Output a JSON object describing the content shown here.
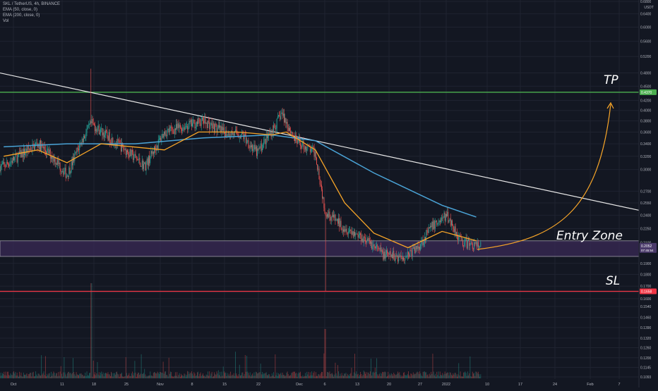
{
  "legend": {
    "symbol": "SKL / TetherUS, 4h, BINANCE",
    "ema50": "EMA (50, close, 0)",
    "ema200": "EMA (200, close, 0)",
    "vol": "Vol"
  },
  "price_unit": "USDT",
  "annotations": {
    "tp": "TP",
    "entry": "Entry Zone",
    "sl": "SL"
  },
  "colors": {
    "background": "#131722",
    "candle_up": "#26a69a",
    "candle_down": "#ef5350",
    "ema50": "#f7a528",
    "ema200": "#4aa3d6",
    "tp_line": "#4caf50",
    "sl_line": "#f23645",
    "entry_zone_fill": "#3a2a55",
    "trendline": "#e8e8e8",
    "projection_arrow": "#f7a528"
  },
  "chart_data": {
    "type": "candlestick",
    "title": "SKL / TetherUS, 4h, BINANCE",
    "y_axis": {
      "scale": "log",
      "unit": "USDT",
      "range": [
        0.1093,
        0.68
      ],
      "ticks": [
        "0.6800",
        "0.6400",
        "0.6000",
        "0.5600",
        "0.5200",
        "0.4800",
        "0.4500",
        "0.4200",
        "0.4000",
        "0.3800",
        "0.3600",
        "0.3400",
        "0.3200",
        "0.3000",
        "0.2700",
        "0.2550",
        "0.2400",
        "0.2250",
        "0.2100",
        "0.1900",
        "0.1800",
        "0.1700",
        "0.1650",
        "0.1600",
        "0.1540",
        "0.1460",
        "0.1390",
        "0.1320",
        "0.1260",
        "0.1200",
        "0.1145",
        "0.1093"
      ]
    },
    "x_axis": {
      "ticks": [
        "Oct",
        "11",
        "18",
        "25",
        "Nov",
        "8",
        "15",
        "22",
        "Dec",
        "6",
        "13",
        "20",
        "27",
        "2022",
        "10",
        "17",
        "24",
        "Feb",
        "7"
      ]
    },
    "horizontal_levels": [
      {
        "name": "TP",
        "value": 0.437,
        "label": "0.4370"
      },
      {
        "name": "SL",
        "value": 0.1658,
        "label": "0.1658"
      }
    ],
    "entry_zone": {
      "low": 0.1965,
      "high": 0.212,
      "labels": [
        "0.2052",
        "07:45:54"
      ]
    },
    "trendline": {
      "from": {
        "date": "2021-09-28",
        "price": 0.48
      },
      "to": {
        "date": "2022-02-09",
        "price": 0.246
      }
    },
    "series_keypoints": {
      "price_close": [
        {
          "date": "2021-09-28",
          "value": 0.305
        },
        {
          "date": "2021-10-02",
          "value": 0.325
        },
        {
          "date": "2021-10-05",
          "value": 0.34
        },
        {
          "date": "2021-10-08",
          "value": 0.32
        },
        {
          "date": "2021-10-11",
          "value": 0.292
        },
        {
          "date": "2021-10-14",
          "value": 0.345
        },
        {
          "date": "2021-10-16",
          "value": 0.375
        },
        {
          "date": "2021-10-19",
          "value": 0.355
        },
        {
          "date": "2021-10-23",
          "value": 0.33
        },
        {
          "date": "2021-10-27",
          "value": 0.305
        },
        {
          "date": "2021-10-31",
          "value": 0.36
        },
        {
          "date": "2021-11-04",
          "value": 0.37
        },
        {
          "date": "2021-11-08",
          "value": 0.38
        },
        {
          "date": "2021-11-12",
          "value": 0.36
        },
        {
          "date": "2021-11-16",
          "value": 0.355
        },
        {
          "date": "2021-11-19",
          "value": 0.325
        },
        {
          "date": "2021-11-23",
          "value": 0.375
        },
        {
          "date": "2021-11-24",
          "value": 0.395
        },
        {
          "date": "2021-11-27",
          "value": 0.345
        },
        {
          "date": "2021-12-01",
          "value": 0.325
        },
        {
          "date": "2021-12-03",
          "value": 0.245
        },
        {
          "date": "2021-12-07",
          "value": 0.226
        },
        {
          "date": "2021-12-11",
          "value": 0.215
        },
        {
          "date": "2021-12-15",
          "value": 0.198
        },
        {
          "date": "2021-12-19",
          "value": 0.196
        },
        {
          "date": "2021-12-22",
          "value": 0.205
        },
        {
          "date": "2021-12-25",
          "value": 0.228
        },
        {
          "date": "2021-12-28",
          "value": 0.24
        },
        {
          "date": "2021-12-31",
          "value": 0.211
        },
        {
          "date": "2022-01-03",
          "value": 0.207
        }
      ],
      "ema50": [
        {
          "date": "2021-09-28",
          "value": 0.32
        },
        {
          "date": "2021-10-05",
          "value": 0.33
        },
        {
          "date": "2021-10-11",
          "value": 0.31
        },
        {
          "date": "2021-10-18",
          "value": 0.34
        },
        {
          "date": "2021-10-31",
          "value": 0.33
        },
        {
          "date": "2021-11-07",
          "value": 0.36
        },
        {
          "date": "2021-11-15",
          "value": 0.36
        },
        {
          "date": "2021-11-22",
          "value": 0.355
        },
        {
          "date": "2021-11-25",
          "value": 0.36
        },
        {
          "date": "2021-12-01",
          "value": 0.33
        },
        {
          "date": "2021-12-07",
          "value": 0.255
        },
        {
          "date": "2021-12-13",
          "value": 0.22
        },
        {
          "date": "2021-12-20",
          "value": 0.205
        },
        {
          "date": "2021-12-27",
          "value": 0.222
        },
        {
          "date": "2022-01-03",
          "value": 0.212
        }
      ],
      "ema200": [
        {
          "date": "2021-09-28",
          "value": 0.335
        },
        {
          "date": "2021-10-11",
          "value": 0.34
        },
        {
          "date": "2021-10-25",
          "value": 0.34
        },
        {
          "date": "2021-11-08",
          "value": 0.35
        },
        {
          "date": "2021-11-22",
          "value": 0.355
        },
        {
          "date": "2021-12-01",
          "value": 0.345
        },
        {
          "date": "2021-12-13",
          "value": 0.295
        },
        {
          "date": "2021-12-27",
          "value": 0.252
        },
        {
          "date": "2022-01-03",
          "value": 0.238
        }
      ]
    },
    "notable_wicks": [
      {
        "date": "2021-10-16",
        "high": 0.49
      },
      {
        "date": "2021-12-03",
        "low": 0.166
      }
    ]
  }
}
